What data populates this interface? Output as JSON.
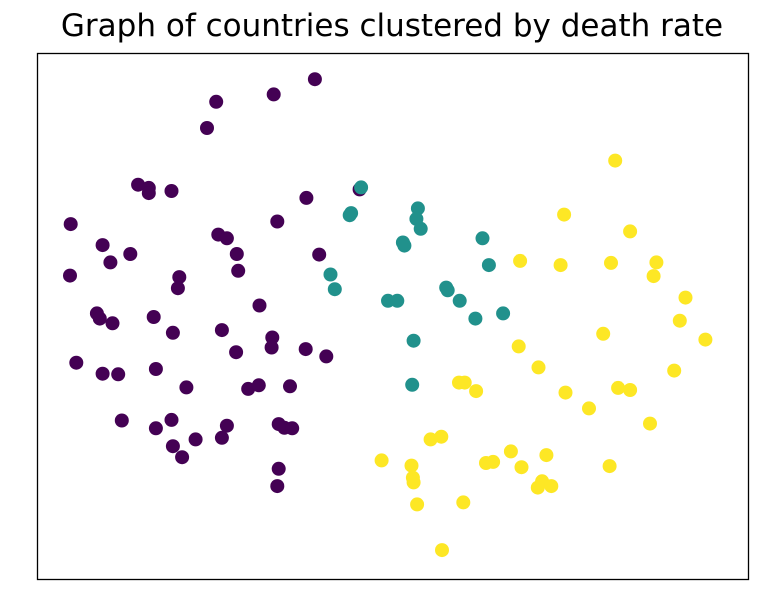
{
  "chart_data": {
    "type": "scatter",
    "title": "Graph of countries clustered by death rate",
    "xlabel": "",
    "ylabel": "",
    "xticks": [],
    "yticks": [],
    "xlim": [
      0,
      100
    ],
    "ylim": [
      0,
      100
    ],
    "grid": false,
    "legend": "none",
    "series": [
      {
        "color": "#440154",
        "points": [
          [
            39.0,
            95.2
          ],
          [
            33.2,
            92.3
          ],
          [
            25.1,
            90.9
          ],
          [
            23.8,
            85.9
          ],
          [
            14.1,
            75.1
          ],
          [
            15.6,
            74.5
          ],
          [
            15.6,
            73.5
          ],
          [
            18.8,
            73.9
          ],
          [
            37.8,
            72.6
          ],
          [
            33.7,
            68.1
          ],
          [
            45.3,
            74.2
          ],
          [
            4.6,
            67.6
          ],
          [
            9.1,
            63.6
          ],
          [
            25.4,
            65.6
          ],
          [
            26.6,
            64.9
          ],
          [
            28.0,
            61.9
          ],
          [
            13.0,
            61.9
          ],
          [
            10.2,
            60.3
          ],
          [
            4.5,
            57.8
          ],
          [
            28.2,
            58.7
          ],
          [
            39.6,
            61.8
          ],
          [
            19.9,
            57.5
          ],
          [
            19.7,
            55.4
          ],
          [
            31.2,
            52.1
          ],
          [
            8.3,
            50.6
          ],
          [
            8.7,
            49.6
          ],
          [
            10.5,
            48.7
          ],
          [
            16.3,
            49.9
          ],
          [
            25.9,
            47.4
          ],
          [
            19.0,
            46.9
          ],
          [
            33.0,
            46.0
          ],
          [
            32.9,
            44.1
          ],
          [
            27.9,
            43.2
          ],
          [
            37.7,
            43.8
          ],
          [
            40.6,
            42.4
          ],
          [
            5.4,
            41.2
          ],
          [
            16.6,
            40.0
          ],
          [
            9.1,
            39.1
          ],
          [
            11.3,
            39.0
          ],
          [
            35.5,
            36.7
          ],
          [
            29.6,
            36.2
          ],
          [
            31.1,
            36.9
          ],
          [
            20.9,
            36.5
          ],
          [
            11.8,
            30.2
          ],
          [
            18.8,
            30.3
          ],
          [
            26.6,
            29.2
          ],
          [
            16.6,
            28.7
          ],
          [
            33.9,
            29.5
          ],
          [
            34.7,
            28.8
          ],
          [
            35.8,
            28.7
          ],
          [
            25.9,
            26.9
          ],
          [
            22.2,
            26.6
          ],
          [
            19.0,
            25.3
          ],
          [
            20.3,
            23.2
          ],
          [
            33.9,
            21.0
          ],
          [
            33.7,
            17.7
          ]
        ]
      },
      {
        "color": "#21918c",
        "points": [
          [
            45.5,
            74.6
          ],
          [
            44.1,
            69.7
          ],
          [
            43.9,
            69.3
          ],
          [
            53.5,
            70.6
          ],
          [
            53.3,
            68.6
          ],
          [
            53.9,
            66.7
          ],
          [
            51.4,
            64.1
          ],
          [
            51.6,
            63.5
          ],
          [
            41.2,
            58.0
          ],
          [
            41.8,
            55.2
          ],
          [
            62.6,
            64.9
          ],
          [
            63.5,
            59.8
          ],
          [
            57.5,
            55.5
          ],
          [
            57.7,
            55.0
          ],
          [
            59.4,
            53.0
          ],
          [
            49.3,
            53.0
          ],
          [
            50.6,
            53.0
          ],
          [
            65.5,
            50.6
          ],
          [
            61.6,
            49.6
          ],
          [
            52.9,
            45.4
          ],
          [
            52.7,
            37.0
          ]
        ]
      },
      {
        "color": "#fde725",
        "points": [
          [
            81.3,
            79.7
          ],
          [
            74.1,
            69.4
          ],
          [
            83.4,
            66.2
          ],
          [
            67.9,
            60.6
          ],
          [
            73.6,
            59.8
          ],
          [
            80.7,
            60.2
          ],
          [
            87.1,
            60.3
          ],
          [
            86.7,
            57.7
          ],
          [
            91.2,
            53.6
          ],
          [
            90.4,
            49.2
          ],
          [
            79.6,
            46.7
          ],
          [
            94.0,
            45.6
          ],
          [
            67.7,
            44.3
          ],
          [
            70.5,
            40.3
          ],
          [
            89.6,
            39.7
          ],
          [
            59.3,
            37.4
          ],
          [
            60.1,
            37.4
          ],
          [
            61.7,
            35.8
          ],
          [
            81.7,
            36.4
          ],
          [
            83.4,
            36.0
          ],
          [
            74.3,
            35.5
          ],
          [
            77.6,
            32.5
          ],
          [
            86.2,
            29.6
          ],
          [
            55.3,
            26.6
          ],
          [
            56.8,
            27.1
          ],
          [
            66.6,
            24.3
          ],
          [
            71.6,
            23.6
          ],
          [
            48.4,
            22.6
          ],
          [
            63.1,
            22.1
          ],
          [
            64.1,
            22.3
          ],
          [
            68.1,
            21.3
          ],
          [
            80.5,
            21.5
          ],
          [
            52.6,
            21.6
          ],
          [
            52.8,
            19.3
          ],
          [
            52.9,
            18.4
          ],
          [
            71.0,
            18.6
          ],
          [
            72.3,
            17.7
          ],
          [
            53.4,
            14.2
          ],
          [
            59.9,
            14.6
          ],
          [
            70.4,
            17.4
          ],
          [
            56.9,
            5.5
          ]
        ]
      }
    ]
  }
}
